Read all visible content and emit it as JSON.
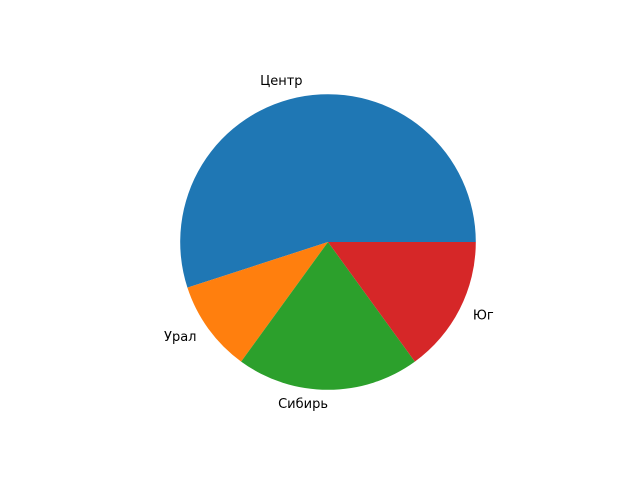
{
  "chart_data": {
    "type": "pie",
    "categories": [
      "Центр",
      "Урал",
      "Сибирь",
      "Юг"
    ],
    "values": [
      55,
      10,
      20,
      15
    ],
    "colors": [
      "#1f77b4",
      "#ff7f0e",
      "#2ca02c",
      "#d62728"
    ],
    "start_angle_deg": 0,
    "direction": "counterclockwise",
    "title": "",
    "legend": "none"
  }
}
